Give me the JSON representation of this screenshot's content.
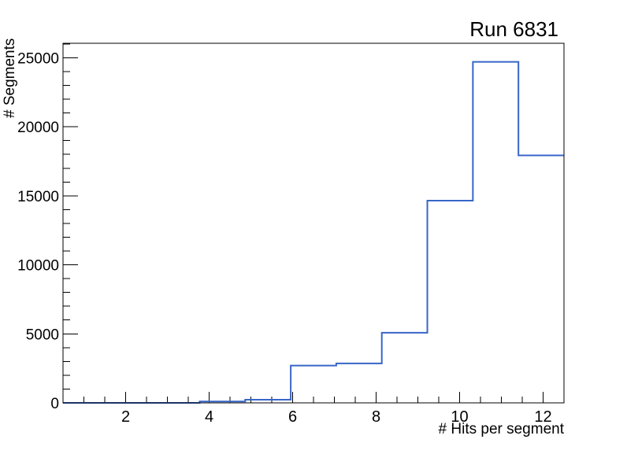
{
  "chart_data": {
    "type": "histogram",
    "title": "Run 6831",
    "xlabel": "# Hits per segment",
    "ylabel": "# Segments",
    "xlim": [
      0.5,
      12.5
    ],
    "ylim": [
      0,
      26050
    ],
    "n_bins": 11,
    "bin_edges": [
      0.5,
      1.591,
      2.682,
      3.773,
      4.864,
      5.955,
      7.045,
      8.136,
      9.227,
      10.318,
      11.409,
      12.5
    ],
    "counts": [
      0,
      0,
      0,
      100,
      230,
      2700,
      2860,
      5080,
      14650,
      24700,
      17930
    ],
    "x_major_ticks": [
      2,
      4,
      6,
      8,
      10,
      12
    ],
    "x_major_tick_labels": [
      "2",
      "4",
      "6",
      "8",
      "10",
      "12"
    ],
    "x_minor_tick_step": 0.5,
    "y_major_ticks": [
      0,
      5000,
      10000,
      15000,
      20000,
      25000
    ],
    "y_major_tick_labels": [
      "0",
      "5000",
      "10000",
      "15000",
      "20000",
      "25000"
    ],
    "y_minor_tick_step": 1000,
    "grid": false,
    "legend": "none",
    "line_color": "#3866c8",
    "axis_color": "#000000",
    "background_color": "#ffffff"
  }
}
